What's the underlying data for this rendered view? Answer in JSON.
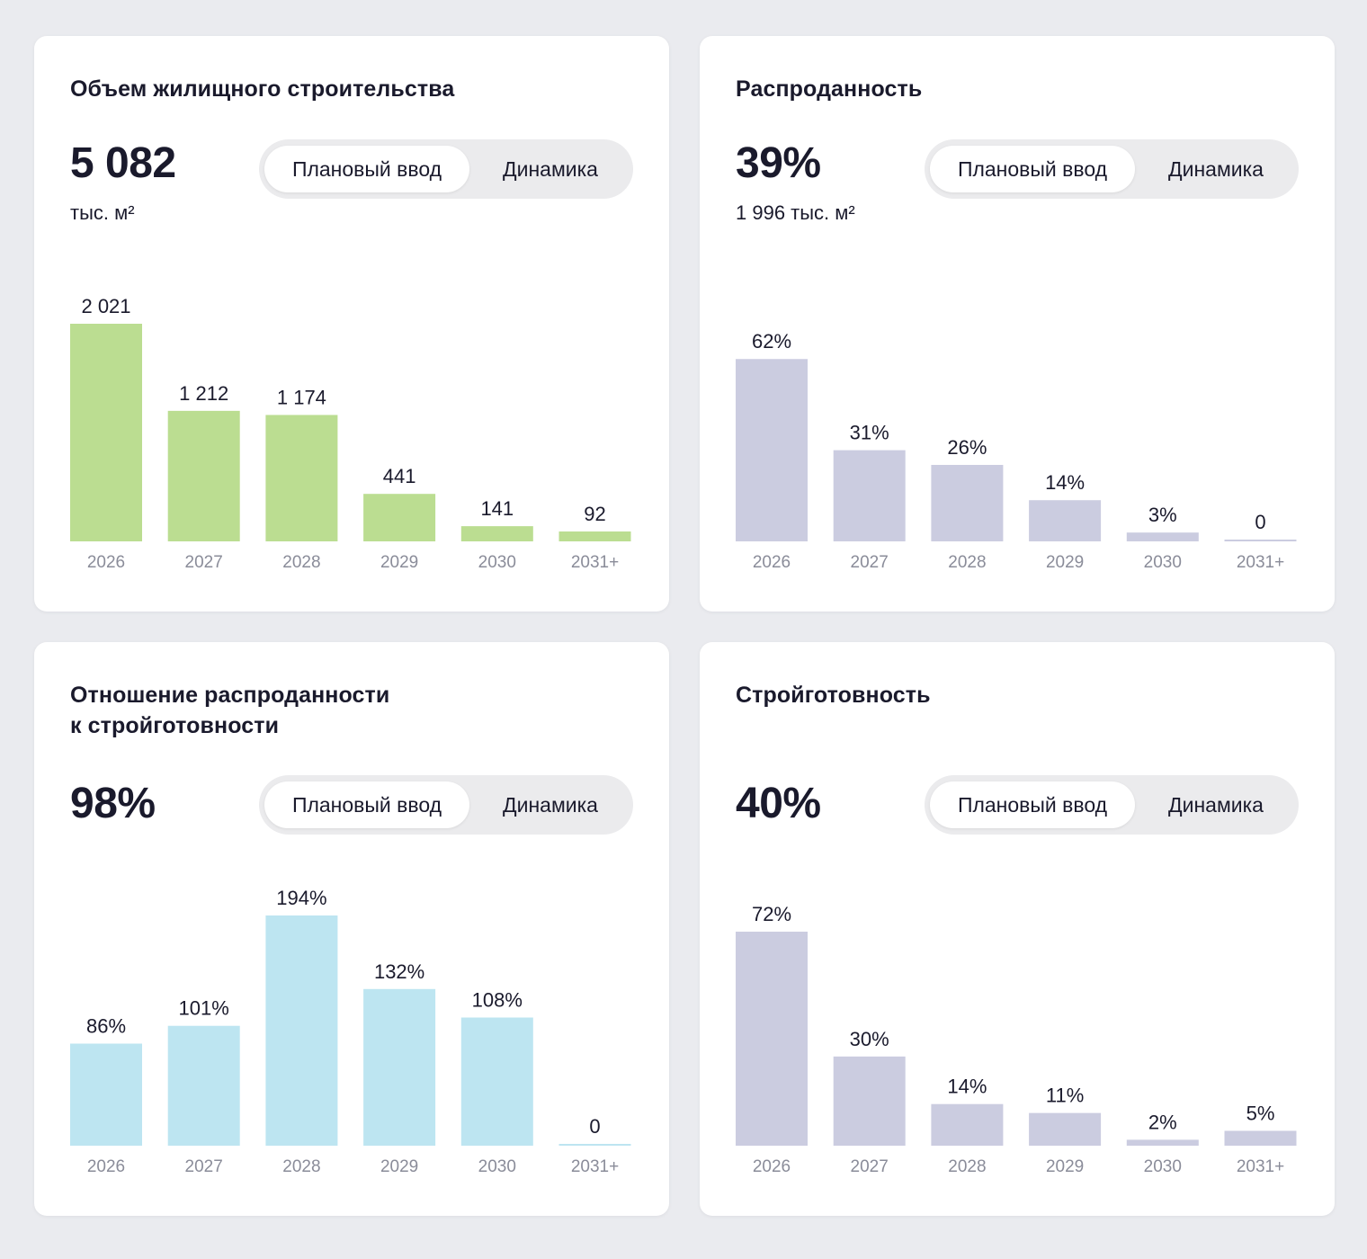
{
  "toggle_labels": {
    "plan": "Плановый ввод",
    "dynamics": "Динамика"
  },
  "cards": [
    {
      "title_lines": [
        "Объем жилищного строительства"
      ],
      "kpi_value": "5 082",
      "kpi_sub": "тыс. м²",
      "bar_color": "#bbdd91",
      "chart_data": {
        "type": "bar",
        "title": "Объем жилищного строительства",
        "categories": [
          "2026",
          "2027",
          "2028",
          "2029",
          "2030",
          "2031+"
        ],
        "values": [
          2021,
          1212,
          1174,
          441,
          141,
          92
        ],
        "value_labels": [
          "2 021",
          "1 212",
          "1 174",
          "441",
          "141",
          "92"
        ],
        "xlabel": "",
        "ylabel": "тыс. м²",
        "ylim": [
          0,
          2021
        ]
      }
    },
    {
      "title_lines": [
        "Распроданность"
      ],
      "kpi_value": "39%",
      "kpi_sub": "1 996 тыс. м²",
      "bar_color": "#cbcce0",
      "chart_data": {
        "type": "bar",
        "title": "Распроданность",
        "categories": [
          "2026",
          "2027",
          "2028",
          "2029",
          "2030",
          "2031+"
        ],
        "values": [
          62,
          31,
          26,
          14,
          3,
          0
        ],
        "value_labels": [
          "62%",
          "31%",
          "26%",
          "14%",
          "3%",
          "0"
        ],
        "xlabel": "",
        "ylabel": "%",
        "ylim": [
          0,
          74
        ]
      }
    },
    {
      "title_lines": [
        "Отношение распроданности",
        "к стройготовности"
      ],
      "kpi_value": "98%",
      "kpi_sub": "",
      "bar_color": "#bde5f1",
      "chart_data": {
        "type": "bar",
        "title": "Отношение распроданности к стройготовности",
        "categories": [
          "2026",
          "2027",
          "2028",
          "2029",
          "2030",
          "2031+"
        ],
        "values": [
          86,
          101,
          194,
          132,
          108,
          0
        ],
        "value_labels": [
          "86%",
          "101%",
          "194%",
          "132%",
          "108%",
          "0"
        ],
        "xlabel": "",
        "ylabel": "%",
        "ylim": [
          0,
          194
        ]
      }
    },
    {
      "title_lines": [
        "Стройготовность"
      ],
      "kpi_value": "40%",
      "kpi_sub": "",
      "bar_color": "#cbcce0",
      "chart_data": {
        "type": "bar",
        "title": "Стройготовность",
        "categories": [
          "2026",
          "2027",
          "2028",
          "2029",
          "2030",
          "2031+"
        ],
        "values": [
          72,
          30,
          14,
          11,
          2,
          5
        ],
        "value_labels": [
          "72%",
          "30%",
          "14%",
          "11%",
          "2%",
          "5%"
        ],
        "xlabel": "",
        "ylabel": "%",
        "ylim": [
          0,
          72
        ]
      }
    }
  ]
}
